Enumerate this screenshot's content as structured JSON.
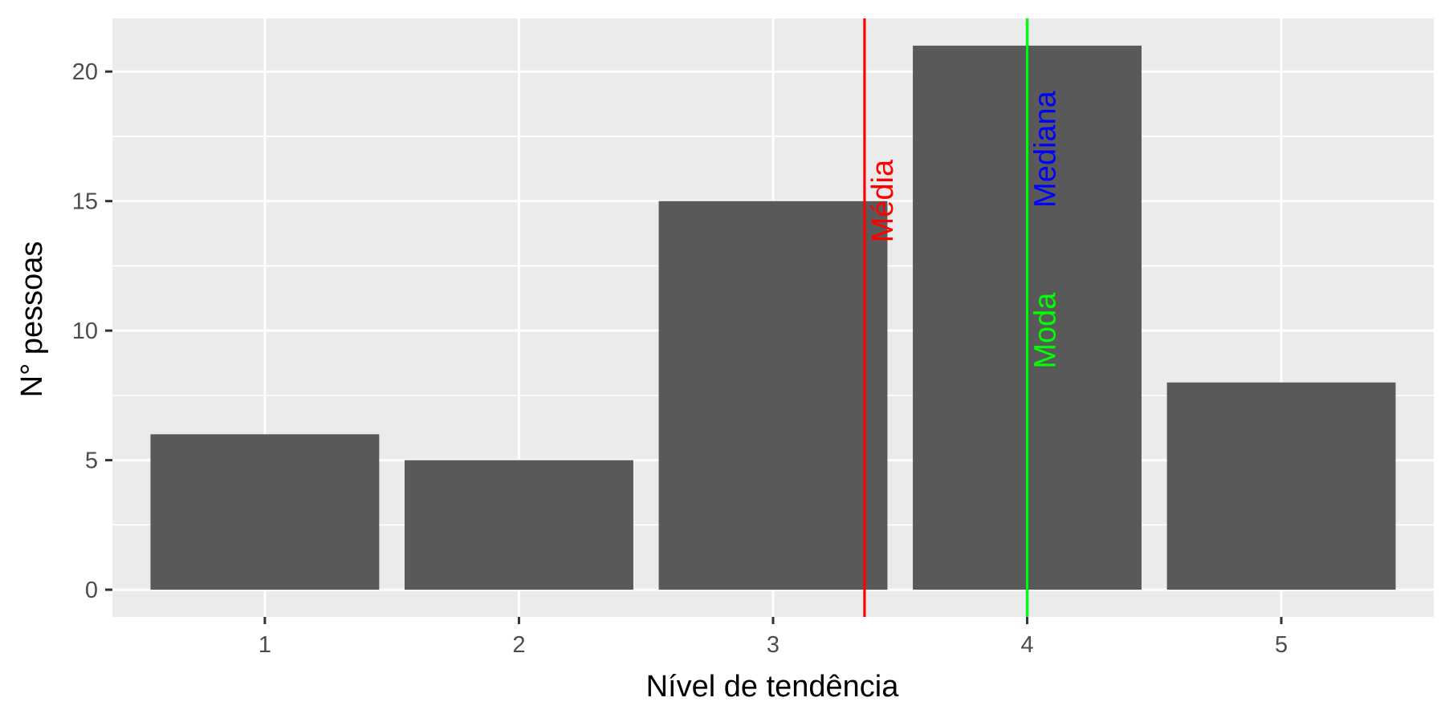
{
  "chart_data": {
    "type": "bar",
    "categories": [
      "1",
      "2",
      "3",
      "4",
      "5"
    ],
    "values": [
      6,
      5,
      15,
      21,
      8
    ],
    "xlabel": "Nível de tendência",
    "ylabel": "N° pessoas",
    "ylim": [
      -1.05,
      22.05
    ],
    "yticks": [
      0,
      5,
      10,
      15,
      20
    ],
    "grid": true,
    "bar_color": "#595959",
    "panel_color": "#ebebeb",
    "reference_lines": [
      {
        "label": "Média",
        "x": 3.36,
        "color": "#ff0000",
        "label_y": 15
      },
      {
        "label": "Mediana",
        "x": 4,
        "color": "#0000ff",
        "label_y": 17
      },
      {
        "label": "Moda",
        "x": 4,
        "color": "#00ff00",
        "label_y": 10
      }
    ]
  }
}
